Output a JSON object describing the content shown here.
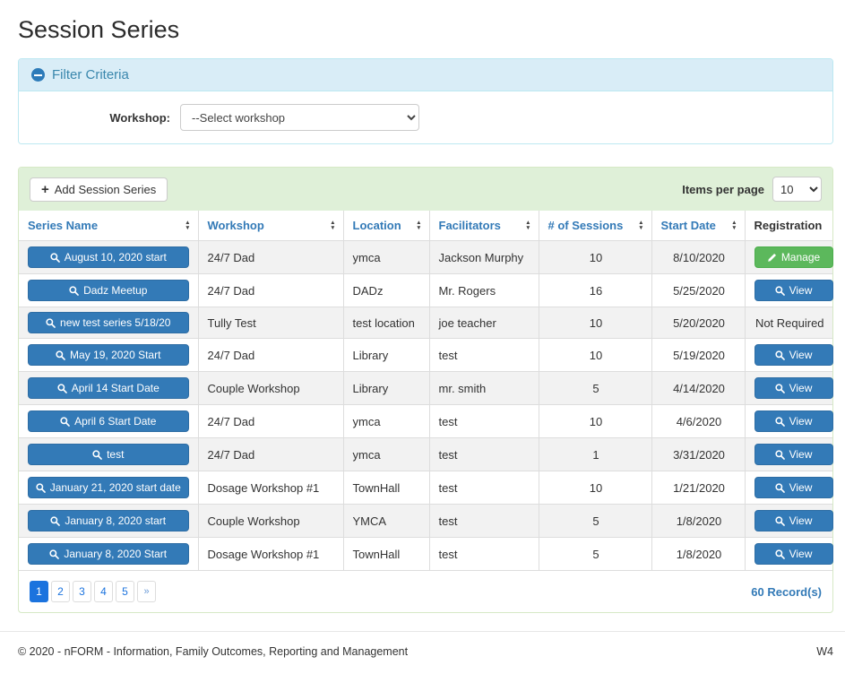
{
  "page": {
    "title": "Session Series"
  },
  "filter": {
    "header_label": "Filter Criteria",
    "workshop_label": "Workshop:",
    "workshop_selected": "--Select workshop"
  },
  "toolbar": {
    "add_button_label": "Add Session Series",
    "items_per_page_label": "Items per page",
    "items_per_page_selected": "10"
  },
  "table": {
    "columns": [
      {
        "label": "Series Name",
        "sortable": true
      },
      {
        "label": "Workshop",
        "sortable": true
      },
      {
        "label": "Location",
        "sortable": true
      },
      {
        "label": "Facilitators",
        "sortable": true
      },
      {
        "label": "# of Sessions",
        "sortable": true
      },
      {
        "label": "Start Date",
        "sortable": true
      },
      {
        "label": "Registration",
        "sortable": false
      }
    ],
    "rows": [
      {
        "series_name": "August 10, 2020 start",
        "workshop": "24/7 Dad",
        "location": "ymca",
        "facilitators": "Jackson Murphy",
        "num_sessions": "10",
        "start_date": "8/10/2020",
        "registration": {
          "type": "manage",
          "label": "Manage"
        }
      },
      {
        "series_name": "Dadz Meetup",
        "workshop": "24/7 Dad",
        "location": "DADz",
        "facilitators": "Mr. Rogers",
        "num_sessions": "16",
        "start_date": "5/25/2020",
        "registration": {
          "type": "view",
          "label": "View"
        }
      },
      {
        "series_name": "new test series 5/18/20",
        "workshop": "Tully Test",
        "location": "test location",
        "facilitators": "joe teacher",
        "num_sessions": "10",
        "start_date": "5/20/2020",
        "registration": {
          "type": "text",
          "label": "Not Required"
        }
      },
      {
        "series_name": "May 19, 2020 Start",
        "workshop": "24/7 Dad",
        "location": "Library",
        "facilitators": "test",
        "num_sessions": "10",
        "start_date": "5/19/2020",
        "registration": {
          "type": "view",
          "label": "View"
        }
      },
      {
        "series_name": "April 14 Start Date",
        "workshop": "Couple Workshop",
        "location": "Library",
        "facilitators": "mr. smith",
        "num_sessions": "5",
        "start_date": "4/14/2020",
        "registration": {
          "type": "view",
          "label": "View"
        }
      },
      {
        "series_name": "April 6 Start Date",
        "workshop": "24/7 Dad",
        "location": "ymca",
        "facilitators": "test",
        "num_sessions": "10",
        "start_date": "4/6/2020",
        "registration": {
          "type": "view",
          "label": "View"
        }
      },
      {
        "series_name": "test",
        "workshop": "24/7 Dad",
        "location": "ymca",
        "facilitators": "test",
        "num_sessions": "1",
        "start_date": "3/31/2020",
        "registration": {
          "type": "view",
          "label": "View"
        }
      },
      {
        "series_name": "January 21, 2020 start date",
        "workshop": "Dosage Workshop #1",
        "location": "TownHall",
        "facilitators": "test",
        "num_sessions": "10",
        "start_date": "1/21/2020",
        "registration": {
          "type": "view",
          "label": "View"
        }
      },
      {
        "series_name": "January 8, 2020 start",
        "workshop": "Couple Workshop",
        "location": "YMCA",
        "facilitators": "test",
        "num_sessions": "5",
        "start_date": "1/8/2020",
        "registration": {
          "type": "view",
          "label": "View"
        }
      },
      {
        "series_name": "January 8, 2020 Start",
        "workshop": "Dosage Workshop #1",
        "location": "TownHall",
        "facilitators": "test",
        "num_sessions": "5",
        "start_date": "1/8/2020",
        "registration": {
          "type": "view",
          "label": "View"
        }
      }
    ]
  },
  "pagination": {
    "pages": [
      "1",
      "2",
      "3",
      "4",
      "5",
      "»"
    ],
    "active_page": "1",
    "records_label": "60 Record(s)"
  },
  "footer": {
    "copyright": "© 2020 - nFORM - Information, Family Outcomes, Reporting and Management",
    "environment": "W4"
  },
  "colors": {
    "primary_blue": "#337ab7",
    "success_green": "#5cb85c",
    "info_heading_bg": "#d9edf7",
    "info_border": "#bce8f1",
    "success_heading_bg": "#dff0d8",
    "success_border": "#d6e9c6",
    "pagination_blue": "#1b73de",
    "row_stripe": "#f2f2f2"
  }
}
